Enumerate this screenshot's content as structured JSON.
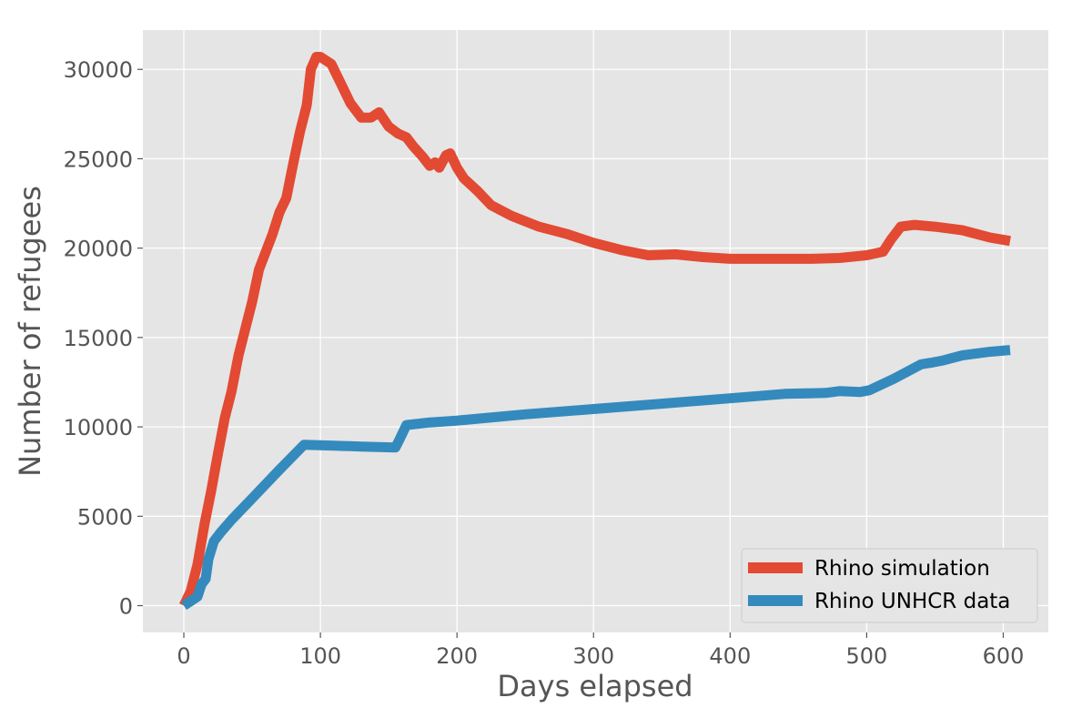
{
  "chart_data": {
    "type": "line",
    "title": "",
    "xlabel": "Days elapsed",
    "ylabel": "Number of refugees",
    "xlim": [
      -30,
      633
    ],
    "ylim": [
      -1500,
      32200
    ],
    "xticks": [
      0,
      100,
      200,
      300,
      400,
      500,
      600
    ],
    "yticks": [
      0,
      5000,
      10000,
      15000,
      20000,
      25000,
      30000
    ],
    "grid": true,
    "legend_position": "lower-right",
    "background_color": "#e5e5e5",
    "grid_color": "#ffffff",
    "series": [
      {
        "name": "Rhino simulation",
        "color": "#e24a33",
        "points": [
          [
            0,
            0
          ],
          [
            5,
            800
          ],
          [
            10,
            2300
          ],
          [
            15,
            4500
          ],
          [
            20,
            6400
          ],
          [
            25,
            8500
          ],
          [
            30,
            10500
          ],
          [
            35,
            12000
          ],
          [
            40,
            14000
          ],
          [
            45,
            15500
          ],
          [
            50,
            17000
          ],
          [
            55,
            18800
          ],
          [
            60,
            19800
          ],
          [
            65,
            20800
          ],
          [
            70,
            22000
          ],
          [
            75,
            22800
          ],
          [
            80,
            24700
          ],
          [
            85,
            26500
          ],
          [
            90,
            28000
          ],
          [
            93,
            30000
          ],
          [
            97,
            30700
          ],
          [
            100,
            30700
          ],
          [
            108,
            30300
          ],
          [
            115,
            29200
          ],
          [
            122,
            28100
          ],
          [
            130,
            27300
          ],
          [
            137,
            27300
          ],
          [
            143,
            27600
          ],
          [
            150,
            26800
          ],
          [
            157,
            26400
          ],
          [
            163,
            26200
          ],
          [
            168,
            25700
          ],
          [
            175,
            25100
          ],
          [
            180,
            24600
          ],
          [
            184,
            24800
          ],
          [
            187,
            24500
          ],
          [
            192,
            25200
          ],
          [
            195,
            25300
          ],
          [
            200,
            24500
          ],
          [
            205,
            23900
          ],
          [
            215,
            23200
          ],
          [
            225,
            22400
          ],
          [
            240,
            21800
          ],
          [
            260,
            21200
          ],
          [
            280,
            20800
          ],
          [
            300,
            20300
          ],
          [
            320,
            19900
          ],
          [
            340,
            19600
          ],
          [
            360,
            19650
          ],
          [
            380,
            19500
          ],
          [
            400,
            19400
          ],
          [
            420,
            19400
          ],
          [
            440,
            19400
          ],
          [
            460,
            19400
          ],
          [
            480,
            19450
          ],
          [
            500,
            19600
          ],
          [
            512,
            19800
          ],
          [
            518,
            20500
          ],
          [
            525,
            21200
          ],
          [
            535,
            21300
          ],
          [
            550,
            21200
          ],
          [
            570,
            21000
          ],
          [
            590,
            20600
          ],
          [
            605,
            20400
          ]
        ]
      },
      {
        "name": "Rhino UNHCR data",
        "color": "#348abd",
        "points": [
          [
            0,
            0
          ],
          [
            5,
            250
          ],
          [
            10,
            500
          ],
          [
            13,
            1200
          ],
          [
            16,
            1500
          ],
          [
            18,
            2600
          ],
          [
            22,
            3600
          ],
          [
            27,
            4100
          ],
          [
            35,
            4800
          ],
          [
            50,
            6000
          ],
          [
            70,
            7600
          ],
          [
            88,
            9000
          ],
          [
            110,
            8950
          ],
          [
            130,
            8900
          ],
          [
            155,
            8850
          ],
          [
            158,
            9300
          ],
          [
            163,
            10100
          ],
          [
            180,
            10250
          ],
          [
            200,
            10350
          ],
          [
            250,
            10700
          ],
          [
            300,
            11000
          ],
          [
            350,
            11300
          ],
          [
            400,
            11600
          ],
          [
            440,
            11850
          ],
          [
            470,
            11900
          ],
          [
            480,
            12000
          ],
          [
            495,
            11950
          ],
          [
            502,
            12050
          ],
          [
            520,
            12700
          ],
          [
            540,
            13500
          ],
          [
            548,
            13600
          ],
          [
            555,
            13700
          ],
          [
            570,
            14000
          ],
          [
            590,
            14200
          ],
          [
            605,
            14300
          ]
        ]
      }
    ]
  }
}
